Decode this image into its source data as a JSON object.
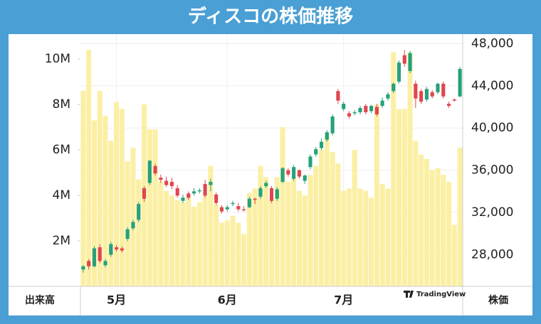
{
  "chart_data": {
    "type": "candlestick",
    "title": "ディスコの株価推移",
    "watermark": "TradingView",
    "ylabel": "出来高",
    "y2label": "株価",
    "grid": true,
    "categories": [
      null,
      null,
      null,
      null,
      null,
      null,
      "5月",
      null,
      null,
      null,
      null,
      null,
      null,
      null,
      null,
      null,
      null,
      null,
      null,
      null,
      null,
      null,
      null,
      null,
      null,
      null,
      "6月",
      null,
      null,
      null,
      null,
      null,
      null,
      null,
      null,
      null,
      null,
      null,
      null,
      null,
      null,
      null,
      null,
      null,
      null,
      null,
      null,
      "7月",
      null,
      null,
      null,
      null,
      null,
      null,
      null,
      null,
      null,
      null,
      null,
      null,
      null,
      null,
      null,
      null,
      null,
      null,
      null,
      null,
      null
    ],
    "ylim": [
      0,
      11000000
    ],
    "yticks": [
      {
        "value": 2000000,
        "label": "2M"
      },
      {
        "value": 4000000,
        "label": "4M"
      },
      {
        "value": 6000000,
        "label": "6M"
      },
      {
        "value": 8000000,
        "label": "8M"
      },
      {
        "value": 10000000,
        "label": "10M"
      }
    ],
    "y2lim": [
      25000,
      48700
    ],
    "y2ticks": [
      {
        "value": 28000,
        "label": "28,000"
      },
      {
        "value": 32000,
        "label": "32,000"
      },
      {
        "value": 36000,
        "label": "36,000"
      },
      {
        "value": 40000,
        "label": "40,000"
      },
      {
        "value": 44000,
        "label": "44,000"
      },
      {
        "value": 48000,
        "label": "48,000"
      }
    ],
    "series": [
      {
        "type": "bar",
        "color": "#fbefa4",
        "values": [
          8600000,
          10400000,
          7300000,
          8600000,
          7500000,
          6400000,
          8100000,
          7800000,
          5500000,
          6100000,
          4700000,
          8000000,
          6900000,
          6900000,
          4600000,
          4200000,
          4000000,
          3800000,
          3700000,
          3900000,
          3500000,
          3700000,
          4000000,
          5300000,
          3600000,
          2800000,
          2900000,
          3100000,
          2800000,
          2300000,
          4100000,
          4300000,
          5300000,
          4800000,
          3800000,
          4800000,
          7000000,
          4600000,
          4800000,
          4200000,
          4000000,
          4900000,
          5300000,
          6000000,
          6700000,
          5900000,
          5400000,
          4200000,
          4300000,
          6000000,
          4300000,
          4200000,
          3900000,
          8000000,
          4500000,
          4300000,
          10300000,
          7800000,
          7800000,
          10300000,
          6400000,
          5800000,
          5600000,
          5100000,
          5200000,
          4900000,
          4600000,
          2700000,
          6100000
        ]
      },
      {
        "type": "candlestick",
        "axis": "y2",
        "up_color": "#26a17a",
        "down_color": "#e0464e",
        "open": [
          26600,
          27400,
          26900,
          28700,
          27000,
          28000,
          28700,
          28600,
          29500,
          30500,
          31300,
          34300,
          34800,
          36400,
          35300,
          35000,
          34900,
          34300,
          33100,
          33800,
          33800,
          34000,
          34700,
          34600,
          33700,
          32500,
          32300,
          32800,
          32600,
          32300,
          32500,
          33300,
          33500,
          34500,
          34300,
          33300,
          34900,
          36000,
          35200,
          36000,
          35000,
          36300,
          37500,
          38100,
          38900,
          39500,
          43500,
          41800,
          41400,
          41400,
          41500,
          42100,
          41600,
          42000,
          42100,
          42800,
          43500,
          44400,
          46900,
          45400,
          44200,
          43500,
          42700,
          43400,
          43400,
          44200,
          42300,
          42700,
          43000
        ],
        "high": [
          27000,
          27600,
          28800,
          29000,
          27600,
          29200,
          28900,
          28800,
          30600,
          31300,
          33000,
          34500,
          37000,
          36600,
          35600,
          35400,
          35300,
          34600,
          33700,
          34000,
          34300,
          34300,
          35100,
          35200,
          33900,
          32700,
          32700,
          33100,
          32900,
          32600,
          33500,
          33400,
          34500,
          35000,
          34500,
          34400,
          36300,
          36200,
          36500,
          36100,
          35600,
          37500,
          38200,
          39000,
          39800,
          41300,
          43700,
          42500,
          41600,
          41700,
          42100,
          42300,
          42200,
          42300,
          42900,
          43400,
          44300,
          46400,
          47400,
          47300,
          44500,
          43700,
          43900,
          43600,
          44300,
          44400,
          42500,
          42800,
          45800
        ],
        "low": [
          26300,
          26600,
          26800,
          27200,
          26800,
          27800,
          28300,
          28200,
          29300,
          30300,
          31100,
          33000,
          34600,
          35500,
          34800,
          34400,
          34200,
          33400,
          32900,
          33200,
          33600,
          33800,
          33400,
          34000,
          32700,
          31900,
          32100,
          32600,
          32100,
          32100,
          32400,
          32800,
          33300,
          34300,
          32900,
          33100,
          34800,
          35400,
          35000,
          35200,
          34700,
          36100,
          37300,
          37900,
          38700,
          39300,
          42300,
          41600,
          40900,
          41200,
          41300,
          41300,
          41400,
          41100,
          41900,
          42600,
          43300,
          44200,
          45800,
          45200,
          41900,
          42300,
          42500,
          42800,
          43200,
          42800,
          41900,
          42500,
          42900
        ],
        "close": [
          26900,
          26900,
          28600,
          27400,
          27400,
          29000,
          28500,
          28400,
          30400,
          31100,
          32800,
          33300,
          36900,
          35700,
          35100,
          34600,
          34500,
          33600,
          33400,
          33400,
          34000,
          34100,
          33600,
          34900,
          32900,
          32100,
          32500,
          32900,
          32300,
          32200,
          33300,
          33200,
          34300,
          34800,
          33100,
          34200,
          36200,
          35600,
          36300,
          35400,
          35500,
          37300,
          38000,
          38700,
          39600,
          41100,
          42600,
          42300,
          41100,
          41500,
          41900,
          41500,
          42100,
          41300,
          42600,
          43200,
          44200,
          46200,
          46100,
          47100,
          42800,
          42500,
          43700,
          43000,
          44200,
          43000,
          42100,
          42600,
          45600
        ]
      }
    ]
  }
}
